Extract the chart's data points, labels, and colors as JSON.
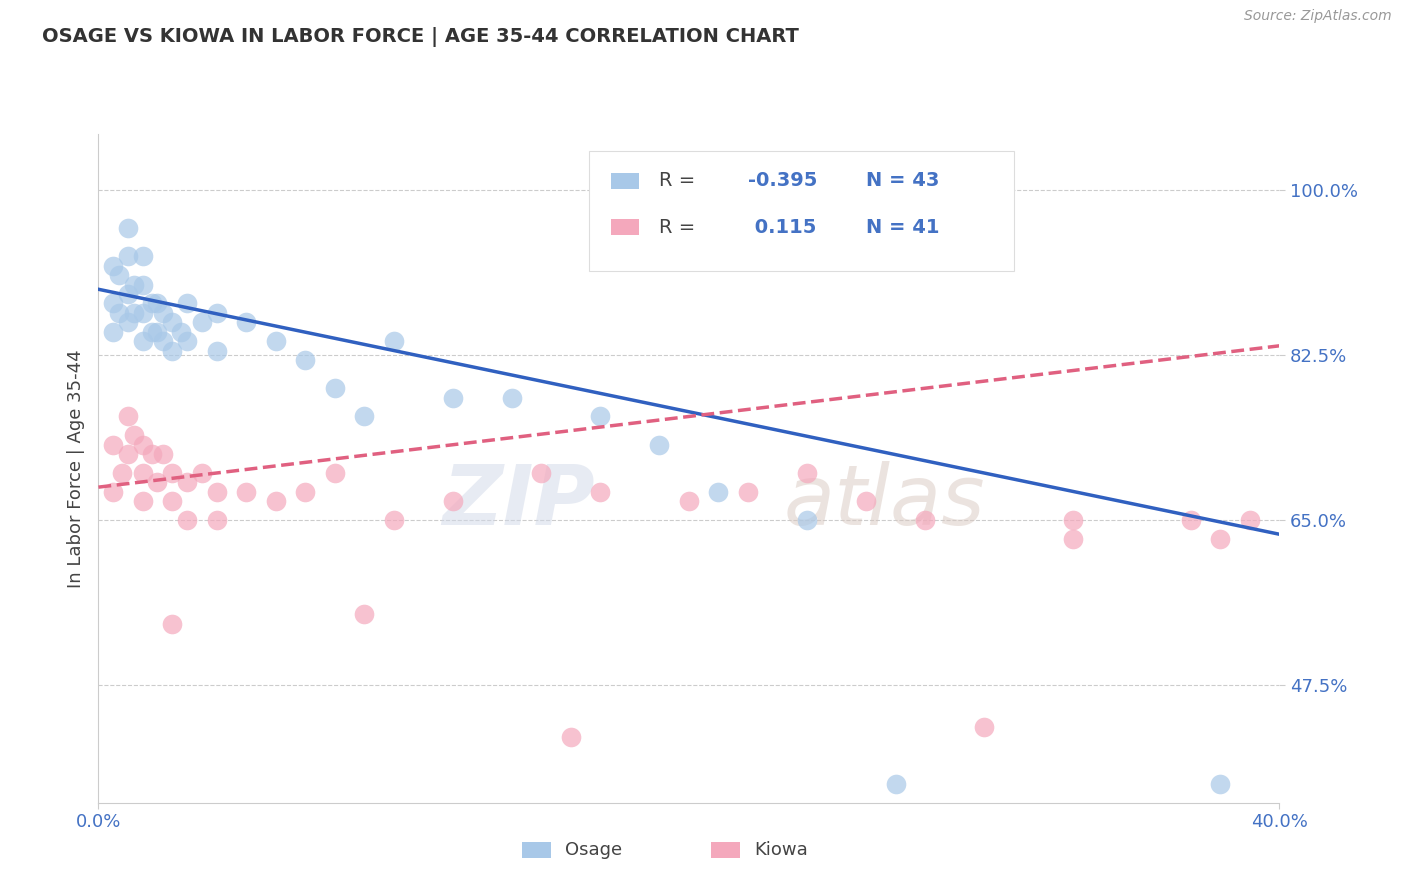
{
  "title": "OSAGE VS KIOWA IN LABOR FORCE | AGE 35-44 CORRELATION CHART",
  "source": "Source: ZipAtlas.com",
  "ylabel": "In Labor Force | Age 35-44",
  "xlim": [
    0.0,
    0.4
  ],
  "ylim": [
    0.35,
    1.06
  ],
  "ytick_positions": [
    0.475,
    0.65,
    0.825,
    1.0
  ],
  "ytick_labels": [
    "47.5%",
    "65.0%",
    "82.5%",
    "100.0%"
  ],
  "osage_color": "#a8c8e8",
  "kiowa_color": "#f4a8bc",
  "trend_blue": "#3060c0",
  "trend_pink": "#e06080",
  "R_osage": -0.395,
  "N_osage": 43,
  "R_kiowa": 0.115,
  "N_kiowa": 41,
  "watermark_zip": "ZIP",
  "watermark_atlas": "atlas",
  "background_color": "#ffffff",
  "grid_color": "#cccccc",
  "title_color": "#333333",
  "axis_label_color": "#444444",
  "tick_color": "#4472c4",
  "osage_points_x": [
    0.005,
    0.005,
    0.005,
    0.007,
    0.007,
    0.01,
    0.01,
    0.01,
    0.01,
    0.012,
    0.012,
    0.015,
    0.015,
    0.015,
    0.015,
    0.018,
    0.018,
    0.02,
    0.02,
    0.022,
    0.022,
    0.025,
    0.025,
    0.028,
    0.03,
    0.03,
    0.035,
    0.04,
    0.04,
    0.05,
    0.06,
    0.07,
    0.08,
    0.09,
    0.1,
    0.12,
    0.14,
    0.17,
    0.19,
    0.21,
    0.24,
    0.27,
    0.38
  ],
  "osage_points_y": [
    0.92,
    0.88,
    0.85,
    0.91,
    0.87,
    0.96,
    0.93,
    0.89,
    0.86,
    0.9,
    0.87,
    0.93,
    0.9,
    0.87,
    0.84,
    0.88,
    0.85,
    0.88,
    0.85,
    0.87,
    0.84,
    0.86,
    0.83,
    0.85,
    0.88,
    0.84,
    0.86,
    0.87,
    0.83,
    0.86,
    0.84,
    0.82,
    0.79,
    0.76,
    0.84,
    0.78,
    0.78,
    0.76,
    0.73,
    0.68,
    0.65,
    0.37,
    0.37
  ],
  "kiowa_points_x": [
    0.005,
    0.005,
    0.008,
    0.01,
    0.01,
    0.012,
    0.015,
    0.015,
    0.015,
    0.018,
    0.02,
    0.022,
    0.025,
    0.025,
    0.03,
    0.03,
    0.035,
    0.04,
    0.04,
    0.05,
    0.06,
    0.07,
    0.08,
    0.09,
    0.1,
    0.12,
    0.15,
    0.17,
    0.2,
    0.22,
    0.24,
    0.26,
    0.28,
    0.3,
    0.33,
    0.33,
    0.37,
    0.38,
    0.39,
    0.025,
    0.16
  ],
  "kiowa_points_y": [
    0.73,
    0.68,
    0.7,
    0.76,
    0.72,
    0.74,
    0.73,
    0.7,
    0.67,
    0.72,
    0.69,
    0.72,
    0.7,
    0.67,
    0.69,
    0.65,
    0.7,
    0.68,
    0.65,
    0.68,
    0.67,
    0.68,
    0.7,
    0.55,
    0.65,
    0.67,
    0.7,
    0.68,
    0.67,
    0.68,
    0.7,
    0.67,
    0.65,
    0.43,
    0.65,
    0.63,
    0.65,
    0.63,
    0.65,
    0.54,
    0.42
  ],
  "osage_trend_x": [
    0.0,
    0.4
  ],
  "osage_trend_y": [
    0.895,
    0.635
  ],
  "kiowa_trend_x": [
    0.0,
    0.4
  ],
  "kiowa_trend_y": [
    0.685,
    0.835
  ]
}
